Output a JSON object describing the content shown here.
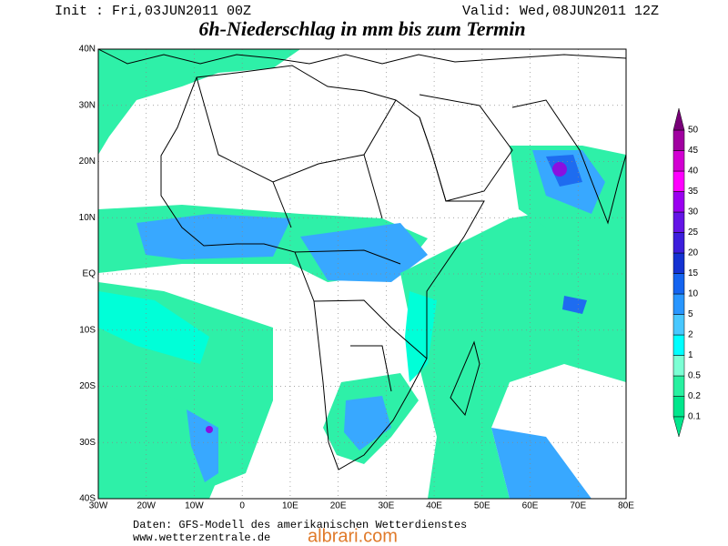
{
  "header": {
    "init": "Init : Fri,03JUN2011 00Z",
    "valid": "Valid: Wed,08JUN2011 12Z",
    "title": "6h-Niederschlag in mm bis zum Termin"
  },
  "axes": {
    "lat_labels": [
      "40N",
      "30N",
      "20N",
      "10N",
      "EQ",
      "10S",
      "20S",
      "30S",
      "40S"
    ],
    "lon_labels": [
      "30W",
      "20W",
      "10W",
      "0",
      "10E",
      "20E",
      "30E",
      "40E",
      "50E",
      "60E",
      "70E",
      "80E"
    ]
  },
  "legend": {
    "items": [
      {
        "label": "0.1",
        "color": "#00e68c"
      },
      {
        "label": "0.2",
        "color": "#28f0a0"
      },
      {
        "label": "0.5",
        "color": "#7cffd4"
      },
      {
        "label": "1",
        "color": "#00ffff"
      },
      {
        "label": "2",
        "color": "#48c8ff"
      },
      {
        "label": "5",
        "color": "#2896ff"
      },
      {
        "label": "10",
        "color": "#1464f0"
      },
      {
        "label": "15",
        "color": "#1432d2"
      },
      {
        "label": "20",
        "color": "#3c1edc"
      },
      {
        "label": "25",
        "color": "#6414e6"
      },
      {
        "label": "30",
        "color": "#9a00f0"
      },
      {
        "label": "35",
        "color": "#ff00ff"
      },
      {
        "label": "40",
        "color": "#d200d2"
      },
      {
        "label": "45",
        "color": "#a000a0"
      },
      {
        "label": "50",
        "color": "#780078"
      }
    ]
  },
  "footer": {
    "source": "Daten: GFS-Modell des amerikanischen Wetterdienstes",
    "url": "www.wetterzentrale.de",
    "watermark": "albrari.com"
  }
}
